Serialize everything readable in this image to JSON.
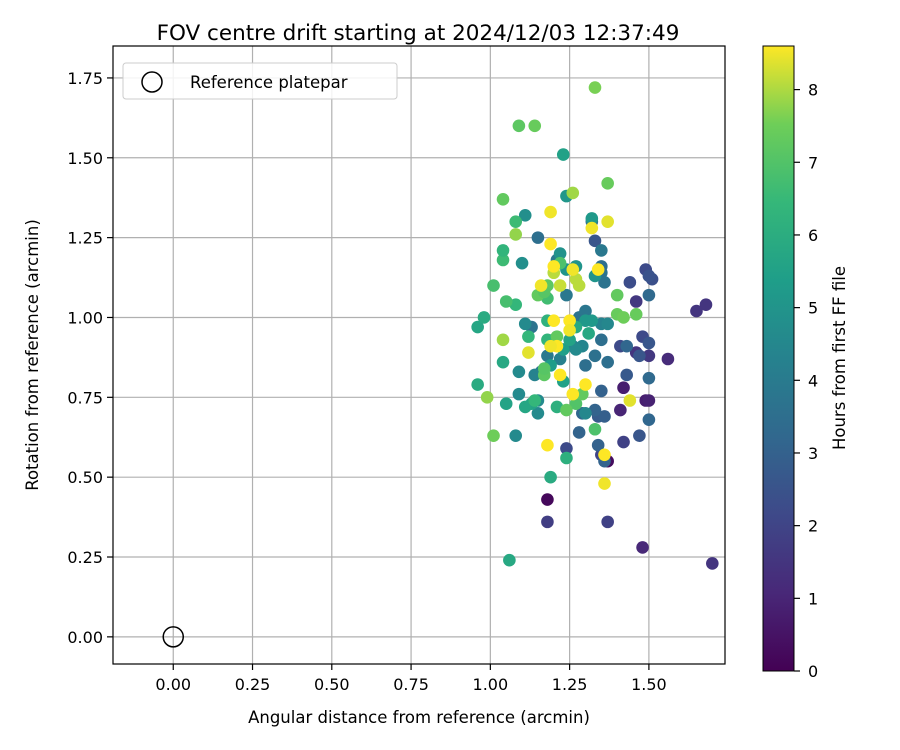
{
  "chart_data": {
    "type": "scatter",
    "title": "FOV centre drift starting at 2024/12/03 12:37:49",
    "xlabel": "Angular distance from reference (arcmin)",
    "ylabel": "Rotation from reference (arcmin)",
    "xlim": [
      -0.19,
      1.74
    ],
    "ylim": [
      -0.085,
      1.85
    ],
    "xticks": [
      0.0,
      0.25,
      0.5,
      0.75,
      1.0,
      1.25,
      1.5
    ],
    "xtick_labels": [
      "0.00",
      "0.25",
      "0.50",
      "0.75",
      "1.00",
      "1.25",
      "1.50"
    ],
    "yticks": [
      0.0,
      0.25,
      0.5,
      0.75,
      1.0,
      1.25,
      1.5,
      1.75
    ],
    "ytick_labels": [
      "0.00",
      "0.25",
      "0.50",
      "0.75",
      "1.00",
      "1.25",
      "1.50",
      "1.75"
    ],
    "grid": true,
    "legend": {
      "placement": "top-left",
      "entries": [
        "Reference platepar"
      ]
    },
    "reference_point": {
      "x": 0.0,
      "y": 0.0
    },
    "colorbar": {
      "label": "Hours from first FF file",
      "min": 0,
      "max": 8.6,
      "ticks": [
        0,
        1,
        2,
        3,
        4,
        5,
        6,
        7,
        8
      ],
      "tick_labels": [
        "0",
        "1",
        "2",
        "3",
        "4",
        "5",
        "6",
        "7",
        "8"
      ],
      "colormap": "viridis"
    },
    "series": [
      {
        "values": [
          [
            1.18,
            0.43,
            0.2
          ],
          [
            1.37,
            0.55,
            0.3
          ],
          [
            1.42,
            0.78,
            0.8
          ],
          [
            1.49,
            0.74,
            0.8
          ],
          [
            1.5,
            0.74,
            0.9
          ],
          [
            1.41,
            0.71,
            1.0
          ],
          [
            1.48,
            0.28,
            1.1
          ],
          [
            1.56,
            0.87,
            1.2
          ],
          [
            1.68,
            1.04,
            1.5
          ],
          [
            1.65,
            1.02,
            1.5
          ],
          [
            1.7,
            0.23,
            1.5
          ],
          [
            1.46,
            0.89,
            1.5
          ],
          [
            1.5,
            0.88,
            1.6
          ],
          [
            1.46,
            1.05,
            1.6
          ],
          [
            1.18,
            0.36,
            1.8
          ],
          [
            1.37,
            0.36,
            1.9
          ],
          [
            1.42,
            0.61,
            1.9
          ],
          [
            1.35,
            0.57,
            2.0
          ],
          [
            1.24,
            0.59,
            2.2
          ],
          [
            1.41,
            0.91,
            2.2
          ],
          [
            1.48,
            0.94,
            2.2
          ],
          [
            1.44,
            1.11,
            2.3
          ],
          [
            1.49,
            1.15,
            2.2
          ],
          [
            1.51,
            1.12,
            2.4
          ],
          [
            1.5,
            1.13,
            2.5
          ],
          [
            1.33,
            1.24,
            2.6
          ],
          [
            1.47,
            0.88,
            2.6
          ],
          [
            1.5,
            0.92,
            2.6
          ],
          [
            1.47,
            0.63,
            2.6
          ],
          [
            1.43,
            0.82,
            2.7
          ],
          [
            1.34,
            0.69,
            2.8
          ],
          [
            1.36,
            0.69,
            2.9
          ],
          [
            1.34,
            0.6,
            3.0
          ],
          [
            1.36,
            0.55,
            3.1
          ],
          [
            1.35,
            0.77,
            3.0
          ],
          [
            1.33,
            0.71,
            3.1
          ],
          [
            1.28,
            0.64,
            3.1
          ],
          [
            1.29,
            0.7,
            3.2
          ],
          [
            1.43,
            0.91,
            3.2
          ],
          [
            1.5,
            0.68,
            3.2
          ],
          [
            1.5,
            0.81,
            3.3
          ],
          [
            1.5,
            1.07,
            3.3
          ],
          [
            1.35,
            0.93,
            3.5
          ],
          [
            1.37,
            0.86,
            3.5
          ],
          [
            1.33,
            0.88,
            3.6
          ],
          [
            1.3,
            0.85,
            3.5
          ],
          [
            1.28,
            1.0,
            3.7
          ],
          [
            1.3,
            1.02,
            3.8
          ],
          [
            1.35,
            1.14,
            3.7
          ],
          [
            1.35,
            1.16,
            3.5
          ],
          [
            1.36,
            1.11,
            3.7
          ],
          [
            1.32,
            1.3,
            3.8
          ],
          [
            1.35,
            1.21,
            3.9
          ],
          [
            1.24,
            1.07,
            3.9
          ],
          [
            1.21,
            1.18,
            3.9
          ],
          [
            1.15,
            1.25,
            3.5
          ],
          [
            1.13,
            0.97,
            3.7
          ],
          [
            1.18,
            0.88,
            3.9
          ],
          [
            1.16,
            0.83,
            3.9
          ],
          [
            1.22,
            0.87,
            4.2
          ],
          [
            1.26,
            0.91,
            4.3
          ],
          [
            1.29,
            0.91,
            4.4
          ],
          [
            1.35,
            0.98,
            4.3
          ],
          [
            1.37,
            0.98,
            4.5
          ],
          [
            1.3,
            0.7,
            4.5
          ],
          [
            1.27,
            0.9,
            4.6
          ],
          [
            1.15,
            0.74,
            4.6
          ],
          [
            1.15,
            0.7,
            4.6
          ],
          [
            1.11,
            0.98,
            4.6
          ],
          [
            1.14,
            0.82,
            4.3
          ],
          [
            1.09,
            0.83,
            4.6
          ],
          [
            1.09,
            0.76,
            4.6
          ],
          [
            1.08,
            0.63,
            4.6
          ],
          [
            1.1,
            1.17,
            4.8
          ],
          [
            1.11,
            1.32,
            4.8
          ],
          [
            1.22,
            1.2,
            4.9
          ],
          [
            1.24,
            1.15,
            5.0
          ],
          [
            1.27,
            1.16,
            5.0
          ],
          [
            1.33,
            1.13,
            5.0
          ],
          [
            1.32,
            1.31,
            5.2
          ],
          [
            1.3,
            0.99,
            5.2
          ],
          [
            1.32,
            0.99,
            5.2
          ],
          [
            1.24,
            1.38,
            5.1
          ],
          [
            1.23,
            1.51,
            5.5
          ],
          [
            1.2,
            0.93,
            5.4
          ],
          [
            1.23,
            0.9,
            5.4
          ],
          [
            1.19,
            0.85,
            5.3
          ],
          [
            1.23,
            0.8,
            5.5
          ],
          [
            1.25,
            0.93,
            5.6
          ],
          [
            1.31,
            0.95,
            5.8
          ],
          [
            1.27,
            0.97,
            5.8
          ],
          [
            1.13,
            0.73,
            5.6
          ],
          [
            1.11,
            0.72,
            5.7
          ],
          [
            1.05,
            0.73,
            5.6
          ],
          [
            1.04,
            0.86,
            5.8
          ],
          [
            0.96,
            0.97,
            5.7
          ],
          [
            0.96,
            0.79,
            5.9
          ],
          [
            0.98,
            1.0,
            5.9
          ],
          [
            1.06,
            0.24,
            5.8
          ],
          [
            1.19,
            0.5,
            5.9
          ],
          [
            1.24,
            0.56,
            6.1
          ],
          [
            1.21,
            0.72,
            6.1
          ],
          [
            1.14,
            0.74,
            6.4
          ],
          [
            1.18,
            0.99,
            6.2
          ],
          [
            1.18,
            0.93,
            6.3
          ],
          [
            1.12,
            0.94,
            6.4
          ],
          [
            1.08,
            1.04,
            6.4
          ],
          [
            1.08,
            1.3,
            6.6
          ],
          [
            1.04,
            1.18,
            6.6
          ],
          [
            1.04,
            1.21,
            6.3
          ],
          [
            1.01,
            1.1,
            6.8
          ],
          [
            1.05,
            1.05,
            6.8
          ],
          [
            1.18,
            1.06,
            6.7
          ],
          [
            1.22,
            1.17,
            6.9
          ],
          [
            1.33,
            0.65,
            6.9
          ],
          [
            1.27,
            0.73,
            7.0
          ],
          [
            1.29,
            0.76,
            7.3
          ],
          [
            1.24,
            0.71,
            7.3
          ],
          [
            1.21,
            0.94,
            7.3
          ],
          [
            1.17,
            0.82,
            7.2
          ],
          [
            1.17,
            0.84,
            7.1
          ],
          [
            1.18,
            1.1,
            7.2
          ],
          [
            1.15,
            1.07,
            7.3
          ],
          [
            1.17,
            1.08,
            7.1
          ],
          [
            1.4,
            1.07,
            7.3
          ],
          [
            1.4,
            1.01,
            7.4
          ],
          [
            1.46,
            1.01,
            7.4
          ],
          [
            1.42,
            1.0,
            7.5
          ],
          [
            1.37,
            1.42,
            7.4
          ],
          [
            1.33,
            1.72,
            7.6
          ],
          [
            1.09,
            1.6,
            7.2
          ],
          [
            1.14,
            1.6,
            7.4
          ],
          [
            1.04,
            1.37,
            7.3
          ],
          [
            1.01,
            0.63,
            7.5
          ],
          [
            0.99,
            0.75,
            7.8
          ],
          [
            1.04,
            0.93,
            7.9
          ],
          [
            1.08,
            1.26,
            7.8
          ],
          [
            1.26,
            1.39,
            7.9
          ],
          [
            1.27,
            1.12,
            8.1
          ],
          [
            1.2,
            1.14,
            8.1
          ],
          [
            1.22,
            1.1,
            8.2
          ],
          [
            1.28,
            1.1,
            8.1
          ],
          [
            1.37,
            1.3,
            8.4
          ],
          [
            1.32,
            1.28,
            8.5
          ],
          [
            1.26,
            1.15,
            8.5
          ],
          [
            1.34,
            1.15,
            8.6
          ],
          [
            1.2,
            1.16,
            8.6
          ],
          [
            1.19,
            1.33,
            8.5
          ],
          [
            1.19,
            1.23,
            8.6
          ],
          [
            1.16,
            1.1,
            8.5
          ],
          [
            1.25,
            0.99,
            8.6
          ],
          [
            1.25,
            0.96,
            8.5
          ],
          [
            1.2,
            0.99,
            8.6
          ],
          [
            1.21,
            0.91,
            8.6
          ],
          [
            1.19,
            0.91,
            8.5
          ],
          [
            1.12,
            0.89,
            8.4
          ],
          [
            1.22,
            0.82,
            8.6
          ],
          [
            1.3,
            0.79,
            8.6
          ],
          [
            1.26,
            0.76,
            8.6
          ],
          [
            1.44,
            0.74,
            8.4
          ],
          [
            1.36,
            0.57,
            8.6
          ],
          [
            1.36,
            0.48,
            8.5
          ],
          [
            1.18,
            0.6,
            8.6
          ]
        ]
      }
    ]
  }
}
